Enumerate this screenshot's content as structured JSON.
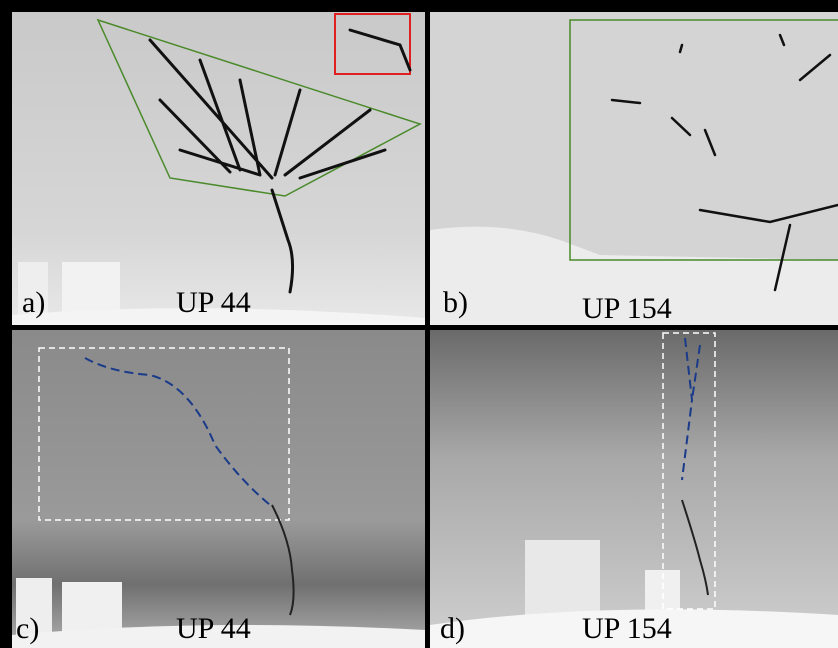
{
  "panels": [
    {
      "label": "a)",
      "caption": "UP 44"
    },
    {
      "label": "b)",
      "caption": "UP 154"
    },
    {
      "label": "c)",
      "caption": "UP 44"
    },
    {
      "label": "d)",
      "caption": "UP 154"
    }
  ]
}
